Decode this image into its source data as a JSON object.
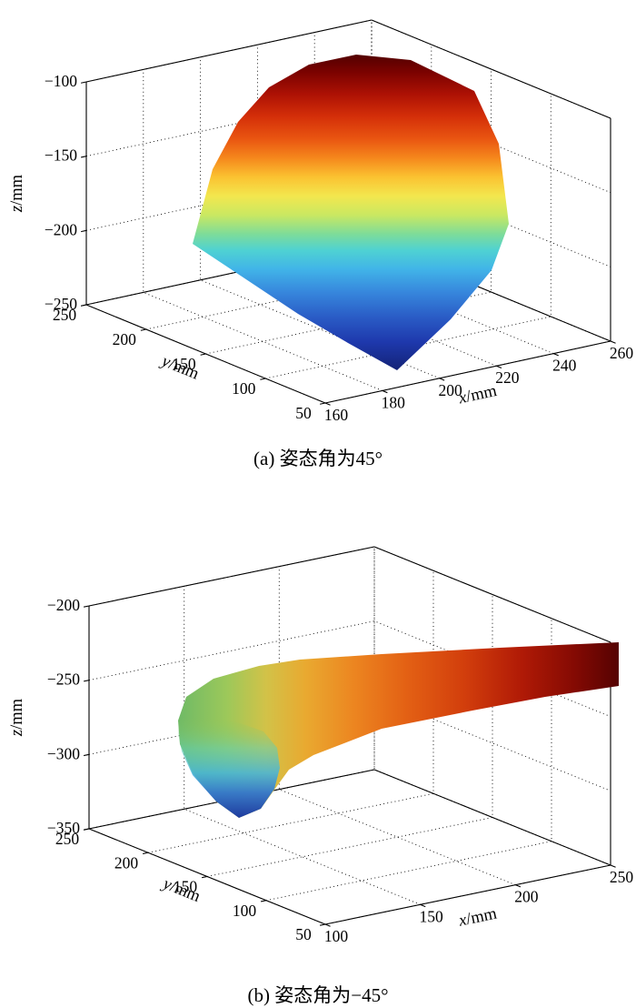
{
  "chart_data": [
    {
      "type": "surface",
      "caption": "(a) 姿态角为45°",
      "xlabel": "x/mm",
      "ylabel": "y/mm",
      "zlabel": "z/mm",
      "xlim": [
        160,
        260
      ],
      "xticks": [
        160,
        180,
        200,
        220,
        240,
        260
      ],
      "ylim": [
        50,
        250
      ],
      "yticks": [
        50,
        100,
        150,
        200,
        250
      ],
      "zlim": [
        -250,
        -100
      ],
      "zticks": [
        -250,
        -200,
        -150,
        -100
      ],
      "colormap": "jet",
      "grid": "dotted",
      "legend": "none",
      "surface": {
        "outline": [
          [
            296,
            96
          ],
          [
            340,
            71
          ],
          [
            392,
            60
          ],
          [
            452,
            66
          ],
          [
            522,
            100
          ],
          [
            549,
            158
          ],
          [
            560,
            246
          ],
          [
            541,
            297
          ],
          [
            496,
            351
          ],
          [
            437,
            407
          ],
          [
            383,
            377
          ],
          [
            328,
            345
          ],
          [
            212,
            268
          ],
          [
            234,
            186
          ],
          [
            262,
            134
          ]
        ],
        "gradient": {
          "x1": 0,
          "y1": 58,
          "x2": 0,
          "y2": 408,
          "stops": [
            [
              0,
              "#4f0000"
            ],
            [
              0.06,
              "#7a0200"
            ],
            [
              0.13,
              "#ad1104"
            ],
            [
              0.2,
              "#d42f09"
            ],
            [
              0.27,
              "#e95511"
            ],
            [
              0.33,
              "#f5871c"
            ],
            [
              0.39,
              "#fbc231"
            ],
            [
              0.45,
              "#f3e74e"
            ],
            [
              0.51,
              "#c9e862"
            ],
            [
              0.57,
              "#7ddc9a"
            ],
            [
              0.62,
              "#4fd2d2"
            ],
            [
              0.68,
              "#41b4e8"
            ],
            [
              0.75,
              "#3788dd"
            ],
            [
              0.83,
              "#2a5cc6"
            ],
            [
              0.91,
              "#1e38ac"
            ],
            [
              1,
              "#132274"
            ]
          ]
        },
        "overlays": []
      }
    },
    {
      "type": "surface",
      "caption": "(b) 姿态角为−45°",
      "xlabel": "x/mm",
      "ylabel": "y/mm",
      "zlabel": "z/mm",
      "xlim": [
        100,
        250
      ],
      "xticks": [
        100,
        150,
        200,
        250
      ],
      "ylim": [
        50,
        250
      ],
      "yticks": [
        50,
        100,
        150,
        200,
        250
      ],
      "zlim": [
        -350,
        -200
      ],
      "zticks": [
        -350,
        -300,
        -250,
        -200
      ],
      "colormap": "jet",
      "grid": "dotted",
      "legend": "none",
      "surface": {
        "outline": [
          [
            681,
            112
          ],
          [
            550,
            118
          ],
          [
            420,
            125
          ],
          [
            330,
            131
          ],
          [
            285,
            138
          ],
          [
            235,
            152
          ],
          [
            205,
            172
          ],
          [
            196,
            198
          ],
          [
            198,
            224
          ],
          [
            212,
            256
          ],
          [
            238,
            287
          ],
          [
            263,
            305
          ],
          [
            287,
            295
          ],
          [
            302,
            274
          ],
          [
            318,
            252
          ],
          [
            345,
            236
          ],
          [
            420,
            207
          ],
          [
            520,
            187
          ],
          [
            600,
            172
          ],
          [
            681,
            160
          ]
        ],
        "gradient": {
          "x1": 681,
          "y1": 0,
          "x2": 196,
          "y2": 0,
          "stops": [
            [
              0,
              "#550202"
            ],
            [
              0.1,
              "#840a03"
            ],
            [
              0.22,
              "#b01a06"
            ],
            [
              0.35,
              "#d23e0c"
            ],
            [
              0.48,
              "#e36014"
            ],
            [
              0.6,
              "#ec8520"
            ],
            [
              0.71,
              "#e9a930"
            ],
            [
              0.8,
              "#d2c248"
            ],
            [
              0.89,
              "#9cc85a"
            ],
            [
              1,
              "#6fba66"
            ]
          ]
        },
        "overlays": [
          {
            "outline": [
              [
                197,
                196
              ],
              [
                196,
                212
              ],
              [
                200,
                232
              ],
              [
                212,
                258
              ],
              [
                238,
                287
              ],
              [
                263,
                305
              ],
              [
                287,
                295
              ],
              [
                302,
                273
              ],
              [
                308,
                250
              ],
              [
                305,
                228
              ],
              [
                290,
                210
              ],
              [
                262,
                200
              ],
              [
                228,
                195
              ]
            ],
            "gradient": {
              "x1": 0,
              "y1": 195,
              "x2": 0,
              "y2": 305,
              "stops": [
                [
                  0,
                  "#8cc858",
                  0
                ],
                [
                  0.3,
                  "#62cfb4",
                  0.55
                ],
                [
                  0.55,
                  "#44b4dc",
                  0.85
                ],
                [
                  0.75,
                  "#3376cc",
                  0.95
                ],
                [
                  1,
                  "#1e3a9e",
                  1
                ]
              ]
            }
          }
        ]
      }
    }
  ]
}
